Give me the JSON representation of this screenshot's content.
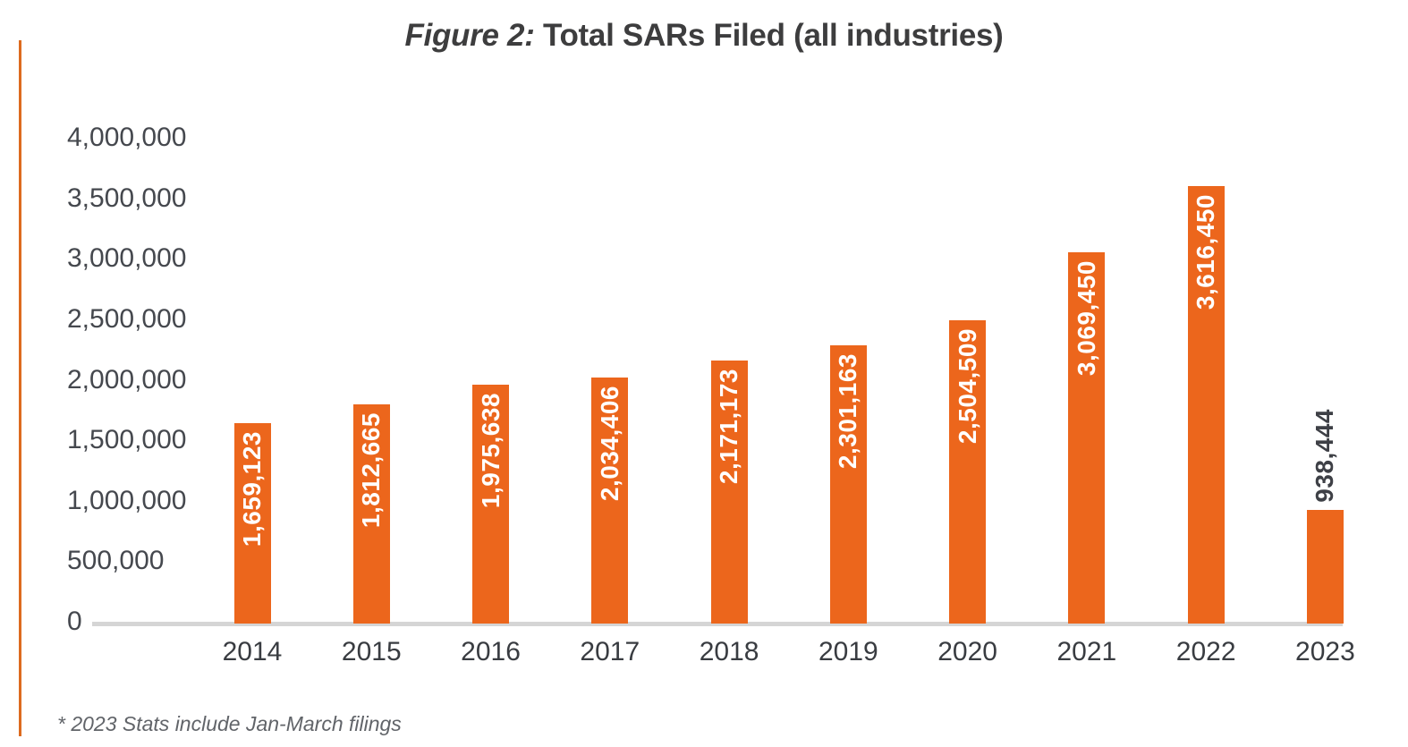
{
  "title": {
    "prefix": "Figure 2:",
    "main": " Total SARs Filed (all industries)"
  },
  "footnote": "* 2023 Stats include Jan-March filings",
  "colors": {
    "bar": "#EC661C",
    "accent_line": "#DD6B1F",
    "axis_line": "#D5D5D5",
    "title_text": "#3D3D3E",
    "ytick_text": "#45484E",
    "xtick_text": "#393C41",
    "bar_label_inside_text": "#FFFFFF",
    "bar_label_above_text": "#3E4046",
    "footnote_text": "#616469"
  },
  "chart_data": {
    "type": "bar",
    "title": "Figure 2: Total SARs Filed (all industries)",
    "categories": [
      "2014",
      "2015",
      "2016",
      "2017",
      "2018",
      "2019",
      "2020",
      "2021",
      "2022",
      "2023"
    ],
    "values": [
      1659123,
      1812665,
      1975638,
      2034406,
      2171173,
      2301163,
      2504509,
      3069450,
      3616450,
      938444
    ],
    "value_labels": [
      "1,659,123",
      "1,812,665",
      "1,975,638",
      "2,034,406",
      "2,171,173",
      "2,301,163",
      "2,504,509",
      "3,069,450",
      "3,616,450",
      "938,444"
    ],
    "xlabel": "",
    "ylabel": "",
    "ylim": [
      0,
      4000000
    ],
    "ytick_interval": 500000,
    "ytick_labels": [
      "0",
      "500,000",
      "1,000,000",
      "1,500,000",
      "2,000,000",
      "2,500,000",
      "3,000,000",
      "3,500,000",
      "4,000,000"
    ],
    "grid": false,
    "legend": false,
    "bar_color": "#EC661C",
    "value_label_rotation": 90,
    "value_label_placement": "inside-top",
    "label_above_indices": [
      9
    ],
    "footnote": "* 2023 Stats include Jan-March filings"
  }
}
